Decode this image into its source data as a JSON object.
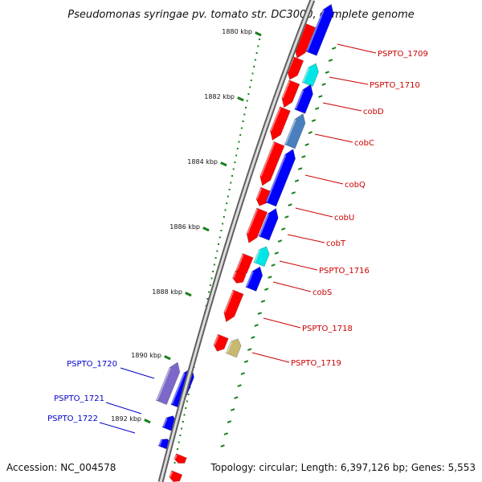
{
  "title": "Pseudomonas syringae pv. tomato str. DC3000, complete genome",
  "footer": {
    "accession": "Accession: NC_004578",
    "topology": "Topology: circular; Length: 6,397,126 bp; Genes: 5,553"
  },
  "scale_labels": [
    "1880 kbp",
    "1882 kbp",
    "1884 kbp",
    "1886 kbp",
    "1888 kbp",
    "1890 kbp",
    "1892 kbp"
  ],
  "colors": {
    "backbone": "#8c8c8c",
    "forward_gene": "#ff0000",
    "reverse_gene": "#0000ff",
    "highlight_cyan": "#00e5e5",
    "highlight_steel": "#4a7fbf",
    "highlight_khaki": "#c8b870",
    "highlight_purple": "#7b68c8",
    "tick": "#1a7f1a",
    "label_right": "#cc0000",
    "label_left": "#0000cc"
  },
  "genes_right": [
    "PSPTO_1709",
    "PSPTO_1710",
    "cobD",
    "cobC",
    "cobQ",
    "cobU",
    "cobT",
    "PSPTO_1716",
    "cobS",
    "PSPTO_1718",
    "PSPTO_1719"
  ],
  "genes_left": [
    "PSPTO_1720",
    "PSPTO_1721",
    "PSPTO_1722"
  ]
}
